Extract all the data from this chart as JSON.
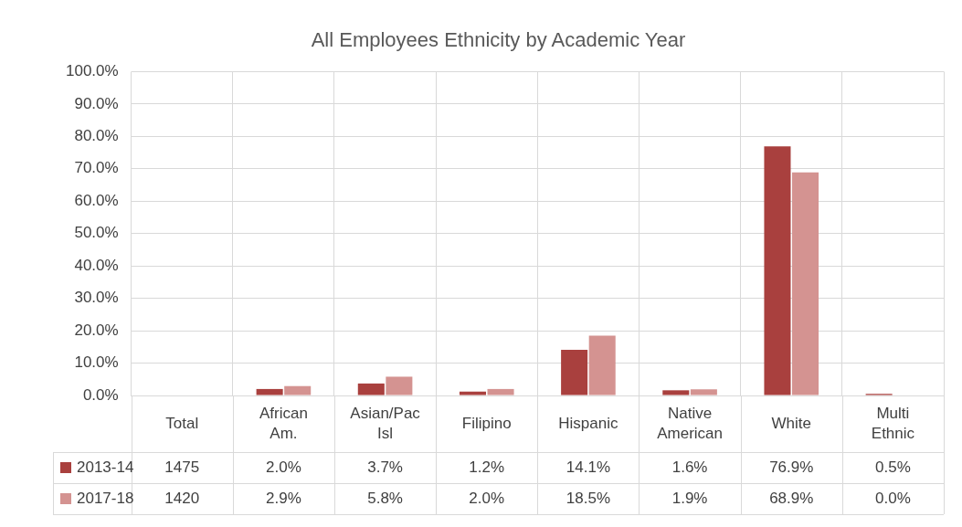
{
  "chart_data": {
    "type": "bar",
    "title": "All Employees Ethnicity by Academic Year",
    "categories": [
      "Total",
      "African Am.",
      "Asian/Pac Isl",
      "Filipino",
      "Hispanic",
      "Native American",
      "White",
      "Multi Ethnic"
    ],
    "series": [
      {
        "name": "2013-14",
        "color": "#a9403e",
        "values": [
          null,
          2.0,
          3.7,
          1.2,
          14.1,
          1.6,
          76.9,
          0.5
        ],
        "value_labels": [
          "1475",
          "2.0%",
          "3.7%",
          "1.2%",
          "14.1%",
          "1.6%",
          "76.9%",
          "0.5%"
        ]
      },
      {
        "name": "2017-18",
        "color": "#d49391",
        "values": [
          null,
          2.9,
          5.8,
          2.0,
          18.5,
          1.9,
          68.9,
          0.0
        ],
        "value_labels": [
          "1420",
          "2.9%",
          "5.8%",
          "2.0%",
          "18.5%",
          "1.9%",
          "68.9%",
          "0.0%"
        ]
      }
    ],
    "ylim": [
      0,
      100
    ],
    "yticks": [
      {
        "value": 0,
        "label": "0.0%"
      },
      {
        "value": 10,
        "label": "10.0%"
      },
      {
        "value": 20,
        "label": "20.0%"
      },
      {
        "value": 30,
        "label": "30.0%"
      },
      {
        "value": 40,
        "label": "40.0%"
      },
      {
        "value": 50,
        "label": "50.0%"
      },
      {
        "value": 60,
        "label": "60.0%"
      },
      {
        "value": 70,
        "label": "70.0%"
      },
      {
        "value": 80,
        "label": "80.0%"
      },
      {
        "value": 90,
        "label": "90.0%"
      },
      {
        "value": 100,
        "label": "100.0%"
      }
    ],
    "grid": true,
    "legend": "bottom"
  }
}
